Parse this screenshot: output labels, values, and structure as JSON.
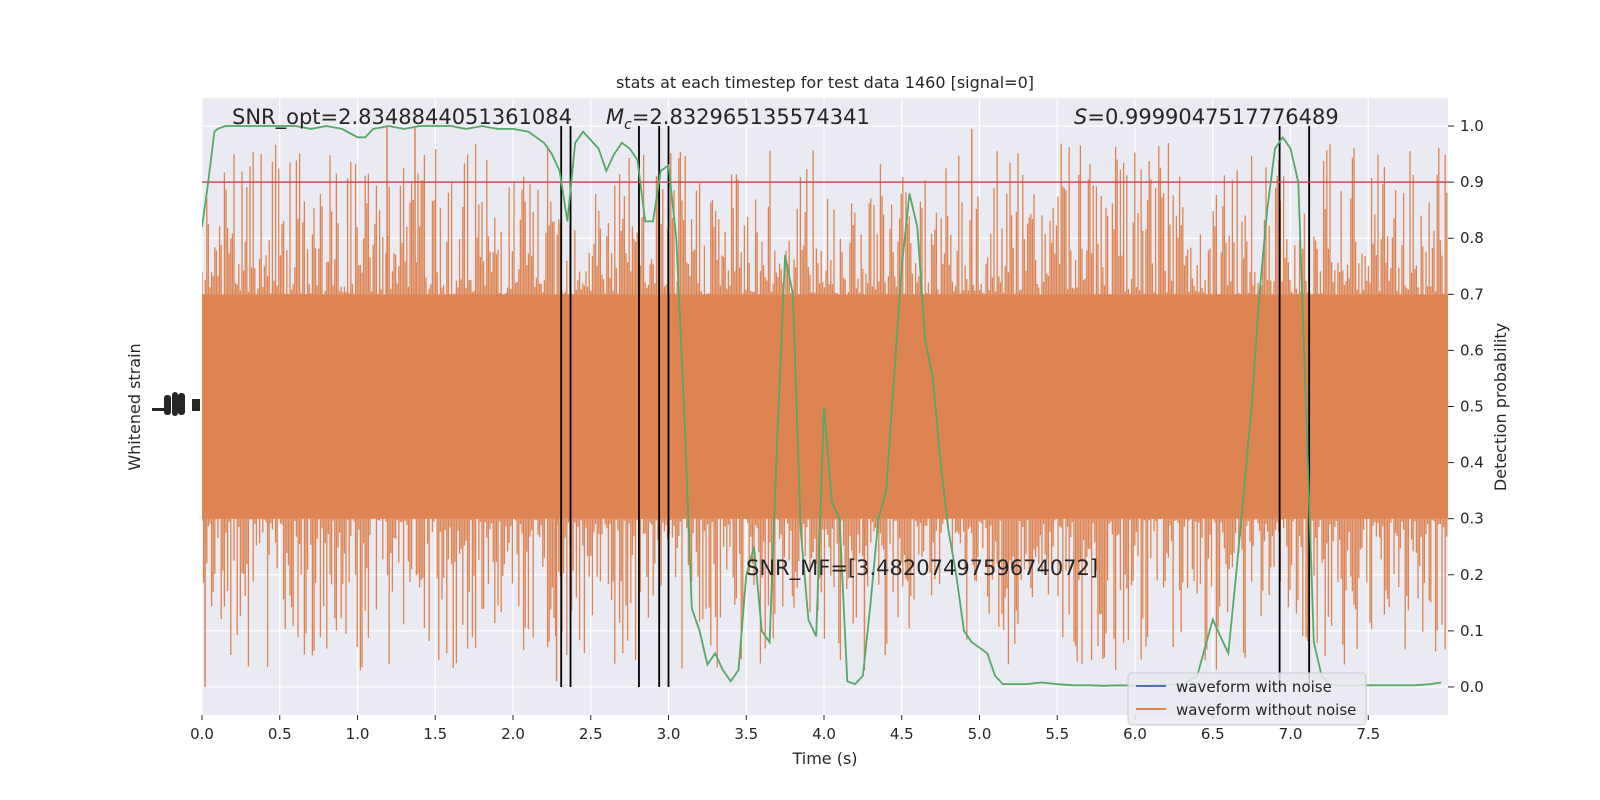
{
  "chart_data": {
    "type": "line",
    "title": "stats at each timestep for test data 1460 [signal=0]",
    "xlabel": "Time (s)",
    "ylabel_left": "Whitened strain",
    "ylabel_right": "Detection probability",
    "xlim": [
      0.0,
      8.0
    ],
    "ylim_right": [
      -0.05,
      1.05
    ],
    "x_ticks": [
      "0.0",
      "0.5",
      "1.0",
      "1.5",
      "2.0",
      "2.5",
      "3.0",
      "3.5",
      "4.0",
      "4.5",
      "5.0",
      "5.5",
      "6.0",
      "6.5",
      "7.0",
      "7.5"
    ],
    "right_ticks": [
      "0.0",
      "0.1",
      "0.2",
      "0.3",
      "0.4",
      "0.5",
      "0.6",
      "0.7",
      "0.8",
      "0.9",
      "1.0"
    ],
    "grid": true,
    "threshold": 0.9,
    "vertical_markers_x": [
      2.31,
      2.37,
      2.81,
      2.94,
      3.0,
      6.93,
      7.12
    ],
    "annotations": {
      "snr_opt": "SNR_opt=2.8348844051361084",
      "mc_symbol": "M",
      "mc_sub": "c",
      "mc_value": "=2.832965135574341",
      "s_symbol": "S",
      "s_value": "=0.9999047517776489",
      "snr_mf": "SNR_MF=[3.4820749759674072]"
    },
    "legend": {
      "placement": "lower-right",
      "entries": [
        "waveform with noise",
        "waveform without noise"
      ]
    },
    "series": [
      {
        "name": "waveform with noise",
        "color": "#4c72b0",
        "description": "whitened strain with noise, hidden under orange trace"
      },
      {
        "name": "waveform without noise",
        "color": "#dd8452",
        "typical_low": 0.3,
        "typical_high": 0.7,
        "spike_low": 0.0,
        "spike_high": 1.0
      },
      {
        "name": "detection probability",
        "color": "#55a868",
        "x": [
          0.0,
          0.04,
          0.08,
          0.1,
          0.15,
          0.2,
          0.3,
          0.4,
          0.5,
          0.6,
          0.7,
          0.8,
          0.9,
          1.0,
          1.05,
          1.1,
          1.2,
          1.3,
          1.4,
          1.5,
          1.6,
          1.7,
          1.8,
          1.9,
          2.0,
          2.1,
          2.15,
          2.2,
          2.25,
          2.3,
          2.35,
          2.4,
          2.45,
          2.5,
          2.55,
          2.6,
          2.65,
          2.7,
          2.75,
          2.8,
          2.85,
          2.9,
          2.95,
          3.0,
          3.05,
          3.1,
          3.15,
          3.2,
          3.25,
          3.3,
          3.35,
          3.4,
          3.45,
          3.5,
          3.55,
          3.6,
          3.65,
          3.7,
          3.75,
          3.8,
          3.85,
          3.9,
          3.95,
          4.0,
          4.05,
          4.1,
          4.15,
          4.2,
          4.25,
          4.3,
          4.35,
          4.4,
          4.45,
          4.5,
          4.55,
          4.6,
          4.65,
          4.7,
          4.75,
          4.8,
          4.85,
          4.9,
          4.95,
          5.0,
          5.05,
          5.1,
          5.15,
          5.2,
          5.25,
          5.3,
          5.4,
          5.5,
          5.6,
          5.7,
          5.8,
          5.9,
          6.0,
          6.1,
          6.2,
          6.3,
          6.4,
          6.5,
          6.55,
          6.6,
          6.65,
          6.7,
          6.75,
          6.8,
          6.85,
          6.9,
          6.95,
          7.0,
          7.05,
          7.1,
          7.15,
          7.2,
          7.25,
          7.3,
          7.35,
          7.4,
          7.5,
          7.6,
          7.7,
          7.8,
          7.9,
          7.97
        ],
        "y": [
          0.82,
          0.9,
          0.99,
          0.995,
          1.0,
          1.0,
          1.0,
          1.0,
          1.0,
          1.0,
          0.995,
          1.0,
          0.995,
          0.98,
          0.98,
          0.995,
          1.0,
          0.995,
          1.0,
          1.0,
          1.0,
          0.995,
          1.0,
          0.995,
          0.995,
          0.99,
          0.98,
          0.97,
          0.95,
          0.92,
          0.83,
          0.97,
          0.99,
          0.975,
          0.96,
          0.92,
          0.95,
          0.97,
          0.96,
          0.94,
          0.83,
          0.83,
          0.92,
          0.93,
          0.8,
          0.5,
          0.14,
          0.1,
          0.04,
          0.06,
          0.03,
          0.01,
          0.03,
          0.2,
          0.25,
          0.1,
          0.08,
          0.45,
          0.77,
          0.7,
          0.28,
          0.12,
          0.09,
          0.5,
          0.33,
          0.3,
          0.01,
          0.005,
          0.02,
          0.15,
          0.3,
          0.35,
          0.55,
          0.75,
          0.88,
          0.82,
          0.62,
          0.55,
          0.4,
          0.28,
          0.2,
          0.1,
          0.08,
          0.07,
          0.06,
          0.02,
          0.005,
          0.005,
          0.005,
          0.005,
          0.008,
          0.005,
          0.003,
          0.003,
          0.002,
          0.003,
          0.002,
          0.003,
          0.005,
          0.003,
          0.02,
          0.12,
          0.09,
          0.06,
          0.2,
          0.35,
          0.5,
          0.7,
          0.85,
          0.96,
          0.98,
          0.96,
          0.9,
          0.5,
          0.08,
          0.02,
          0.005,
          0.003,
          0.003,
          0.003,
          0.003,
          0.003,
          0.003,
          0.003,
          0.005,
          0.008
        ]
      }
    ]
  }
}
